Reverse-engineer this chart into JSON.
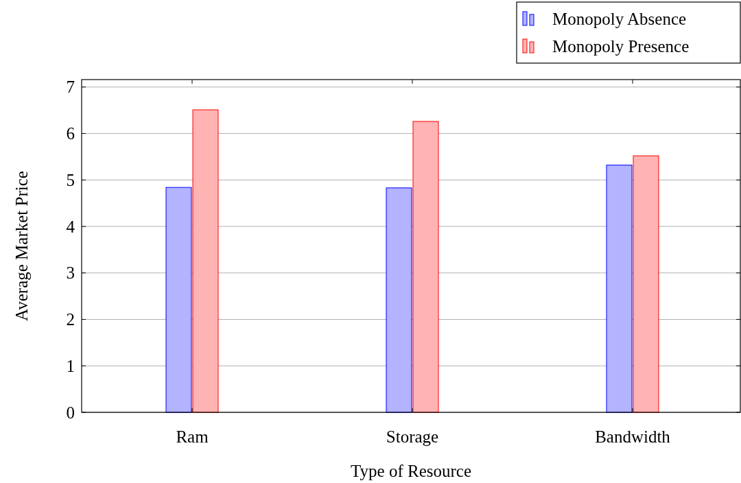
{
  "chart_data": {
    "type": "bar",
    "xlabel": "Type of Resource",
    "ylabel": "Average Market Price",
    "categories": [
      "Ram",
      "Storage",
      "Bandwidth"
    ],
    "series": [
      {
        "name": "Monopoly Absence",
        "color": "#b3b3ff",
        "values": [
          4.84,
          4.83,
          5.32
        ]
      },
      {
        "name": "Monopoly Presence",
        "color": "#ffb3b3",
        "values": [
          6.51,
          6.26,
          5.52
        ]
      }
    ],
    "ylim": [
      0,
      7.16
    ],
    "yticks": [
      0,
      1,
      2,
      3,
      4,
      5,
      6,
      7
    ],
    "grid": "y",
    "legend": "top right"
  }
}
